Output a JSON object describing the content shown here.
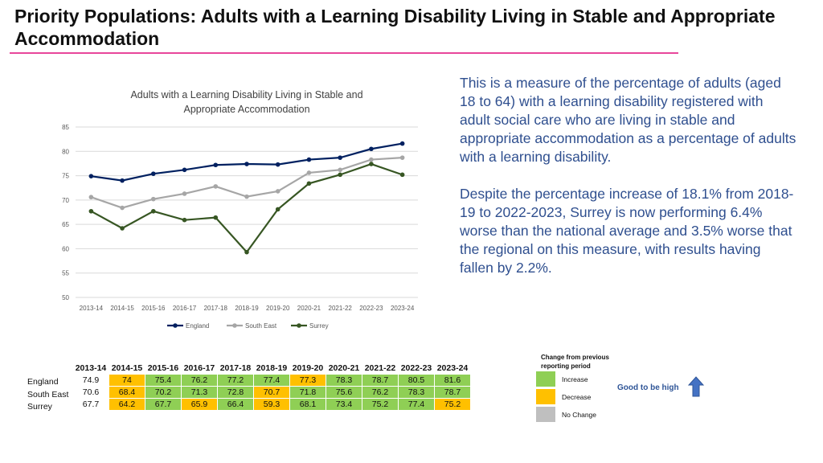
{
  "page": {
    "title": "Priority Populations: Adults with a Learning Disability Living in Stable and Appropriate Accommodation",
    "description": [
      "This is a measure of the percentage of adults (aged 18 to 64) with a learning disability registered with adult social care who are living in stable and appropriate accommodation as a percentage of adults with a learning disability.",
      "Despite the percentage increase of 18.1% from 2018-19 to 2022-2023, Surrey is now performing 6.4% worse than the national average and 3.5% worse that the regional on this measure, with results having fallen by 2.2%."
    ]
  },
  "chart_data": {
    "type": "line",
    "title": "Adults with a Learning Disability Living in Stable and Appropriate Accommodation",
    "categories": [
      "2013-14",
      "2014-15",
      "2015-16",
      "2016-17",
      "2017-18",
      "2018-19",
      "2019-20",
      "2020-21",
      "2021-22",
      "2022-23",
      "2023-24"
    ],
    "ylim": [
      50,
      85
    ],
    "yticks": [
      50,
      55,
      60,
      65,
      70,
      75,
      80,
      85
    ],
    "grid": true,
    "legend": "bottom",
    "series": [
      {
        "name": "England",
        "color": "#002060",
        "values": [
          74.9,
          74,
          75.4,
          76.2,
          77.2,
          77.4,
          77.3,
          78.3,
          78.7,
          80.5,
          81.6
        ]
      },
      {
        "name": "South East",
        "color": "#a6a6a6",
        "values": [
          70.6,
          68.4,
          70.2,
          71.3,
          72.8,
          70.7,
          71.8,
          75.6,
          76.2,
          78.3,
          78.7
        ]
      },
      {
        "name": "Surrey",
        "color": "#375623",
        "values": [
          67.7,
          64.2,
          67.7,
          65.9,
          66.4,
          59.3,
          68.1,
          73.4,
          75.2,
          77.4,
          75.2
        ]
      }
    ]
  },
  "table": {
    "headers": [
      "2013-14",
      "2014-15",
      "2015-16",
      "2016-17",
      "2017-18",
      "2018-19",
      "2019-20",
      "2020-21",
      "2021-22",
      "2022-23",
      "2023-24"
    ],
    "rows": [
      {
        "label": "England",
        "cells": [
          "74.9",
          "74",
          "75.4",
          "76.2",
          "77.2",
          "77.4",
          "77.3",
          "78.3",
          "78.7",
          "80.5",
          "81.6"
        ],
        "status": [
          "none",
          "dec",
          "inc",
          "inc",
          "inc",
          "inc",
          "dec",
          "inc",
          "inc",
          "inc",
          "inc"
        ]
      },
      {
        "label": "South East",
        "cells": [
          "70.6",
          "68.4",
          "70.2",
          "71.3",
          "72.8",
          "70.7",
          "71.8",
          "75.6",
          "76.2",
          "78.3",
          "78.7"
        ],
        "status": [
          "none",
          "dec",
          "inc",
          "inc",
          "inc",
          "dec",
          "inc",
          "inc",
          "inc",
          "inc",
          "inc"
        ]
      },
      {
        "label": "Surrey",
        "cells": [
          "67.7",
          "64.2",
          "67.7",
          "65.9",
          "66.4",
          "59.3",
          "68.1",
          "73.4",
          "75.2",
          "77.4",
          "75.2"
        ],
        "status": [
          "none",
          "dec",
          "inc",
          "dec",
          "inc",
          "dec",
          "inc",
          "inc",
          "inc",
          "inc",
          "dec"
        ]
      }
    ]
  },
  "key": {
    "title": "Change from previous reporting period",
    "increase": "Increase",
    "decrease": "Decrease",
    "no_change": "No Change",
    "good_label": "Good to be high",
    "colors": {
      "increase": "#8fcf55",
      "decrease": "#ffc000",
      "no_change": "#bfbfbf"
    },
    "arrow_icon": "up-arrow-icon",
    "arrow_color": "#4472c4"
  }
}
